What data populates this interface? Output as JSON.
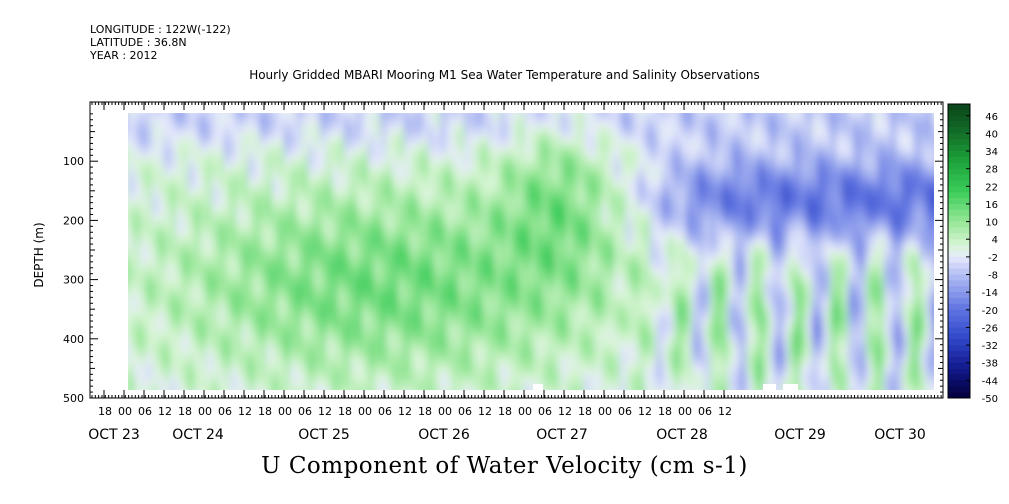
{
  "header": {
    "longitude": "LONGITUDE : 122W(-122)",
    "latitude": "LATITUDE : 36.8N",
    "year": "YEAR : 2012"
  },
  "chart_data": {
    "type": "heatmap",
    "title": "Hourly Gridded MBARI Mooring M1 Sea Water Temperature and Salinity Observations",
    "variable_label": "U Component of Water Velocity (cm s-1)",
    "ylabel": "DEPTH (m)",
    "y_axis": {
      "range": [
        0,
        500
      ],
      "reversed": true,
      "ticks": [
        100,
        200,
        300,
        400,
        500
      ],
      "tick_labels": [
        "100",
        "200",
        "300",
        "400",
        "500"
      ]
    },
    "x_axis": {
      "hour_ticks": [
        "18",
        "00",
        "06",
        "12",
        "18",
        "00",
        "06",
        "12",
        "18",
        "00",
        "06",
        "12",
        "18",
        "00",
        "06",
        "12",
        "18",
        "00",
        "06",
        "12",
        "18",
        "00",
        "06",
        "12",
        "18",
        "00",
        "06",
        "12",
        "18",
        "00",
        "06",
        "12"
      ],
      "date_labels": [
        "OCT 23",
        "OCT 24",
        "OCT 25",
        "OCT 26",
        "OCT 27",
        "OCT 28",
        "OCT 29",
        "OCT 30"
      ]
    },
    "data_extent": {
      "start": "OCT 23 18:00",
      "end": "OCT 30 15:00",
      "depth_min": 20,
      "depth_max": 490
    },
    "colorbar": {
      "labels": [
        "46",
        "40",
        "34",
        "28",
        "22",
        "16",
        "10",
        "4",
        "-2",
        "-8",
        "-14",
        "-20",
        "-26",
        "-32",
        "-38",
        "-44",
        "-50"
      ],
      "range": [
        -50,
        50
      ],
      "colors": {
        "min": "#02003a",
        "blue": "#2f47c8",
        "light_blue": "#aab8ee",
        "zero": "#eef2ff",
        "light_green": "#b9f0b5",
        "green": "#2bc345",
        "max": "#0a4419"
      }
    },
    "field_description": "Eastward velocity: near-surface slightly negative; green positive bands at 150-450 m Oct 24-27; strong negative band ~120-300 m on Oct 28-30 with alternating vertical green/blue streaks below",
    "missing_blocks": [
      "Oct 27 08:00 near 490 m",
      "Oct 29 06:00-12:00 near 490 m"
    ]
  }
}
